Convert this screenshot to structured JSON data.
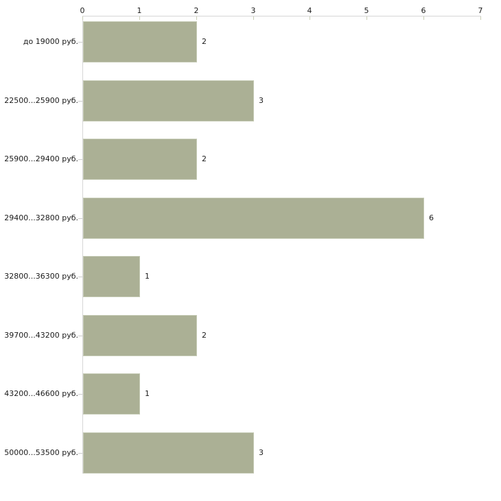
{
  "chart_data": {
    "type": "bar",
    "orientation": "horizontal",
    "title": "",
    "xlabel": "",
    "ylabel": "",
    "axis_position": "top",
    "grid": false,
    "legend": false,
    "xlim": [
      0,
      7
    ],
    "x_ticks": [
      "0",
      "1",
      "2",
      "3",
      "4",
      "5",
      "6",
      "7"
    ],
    "categories": [
      "до 19000 руб.",
      "22500...25900 руб.",
      "25900...29400 руб.",
      "29400...32800 руб.",
      "32800...36300 руб.",
      "39700...43200 руб.",
      "43200...46600 руб.",
      "50000...53500 руб."
    ],
    "values": [
      2,
      3,
      2,
      6,
      1,
      2,
      1,
      3
    ],
    "value_labels": [
      "2",
      "3",
      "2",
      "6",
      "1",
      "2",
      "1",
      "3"
    ]
  },
  "colors": {
    "bar_fill": "#abb095",
    "bar_border": "#c6cbb6",
    "axis_line": "#d6d6d6",
    "x_tick_mark": "#c9ceb5",
    "y_tick_mark": "#cccccc",
    "text": "#1a1a1a",
    "background": "#ffffff"
  }
}
